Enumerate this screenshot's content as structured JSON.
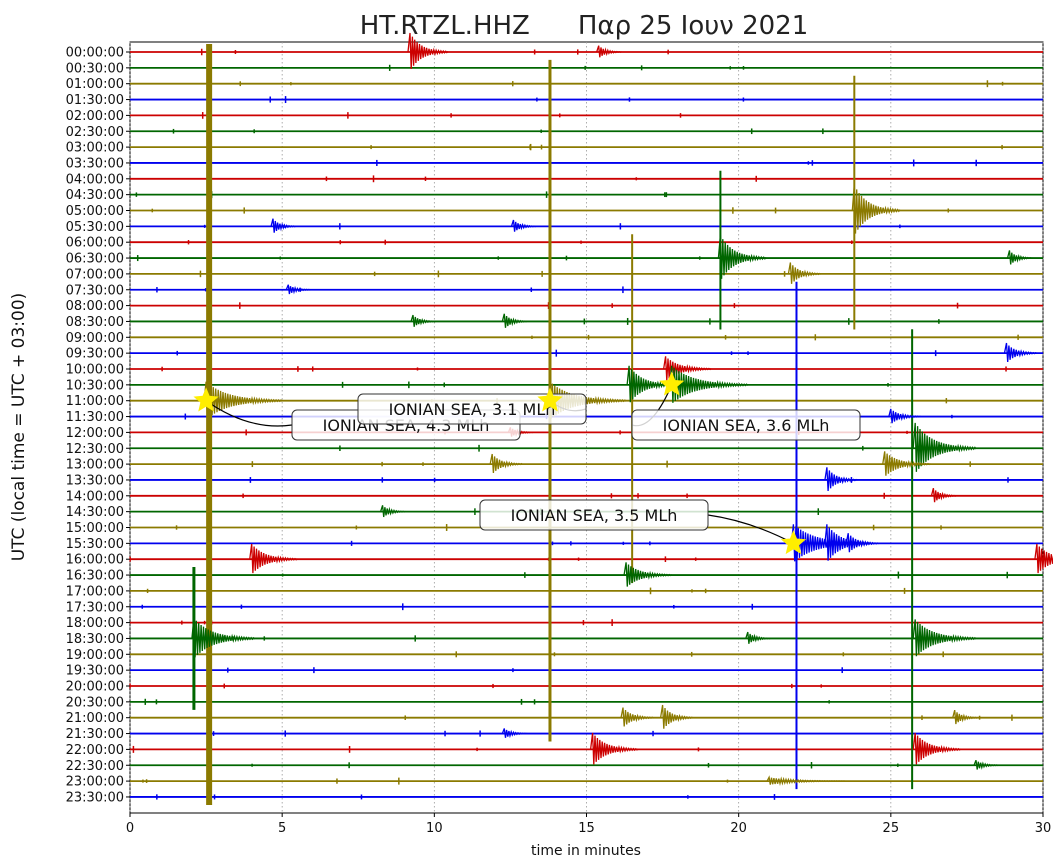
{
  "chart_data": {
    "type": "line",
    "chart_kind": "helicorder",
    "station": "HT.RTZL.HHZ",
    "date": "Παρ 25 Ιουν 2021",
    "xlabel": "time in minutes",
    "ylabel": "UTC (local time = UTC + 03:00)",
    "xlim": [
      0,
      30
    ],
    "x_ticks": [
      "0",
      "5",
      "10",
      "15",
      "20",
      "25",
      "30"
    ],
    "grid": "vertical dotted lines at each x tick",
    "row_colors": [
      "#cc0000",
      "#006600",
      "#8b7a00",
      "#0000ee"
    ],
    "rows": [
      "00:00:00",
      "00:30:00",
      "01:00:00",
      "01:30:00",
      "02:00:00",
      "02:30:00",
      "03:00:00",
      "03:30:00",
      "04:00:00",
      "04:30:00",
      "05:00:00",
      "05:30:00",
      "06:00:00",
      "06:30:00",
      "07:00:00",
      "07:30:00",
      "08:00:00",
      "08:30:00",
      "09:00:00",
      "09:30:00",
      "10:00:00",
      "10:30:00",
      "11:00:00",
      "11:30:00",
      "12:00:00",
      "12:30:00",
      "13:00:00",
      "13:30:00",
      "14:00:00",
      "14:30:00",
      "15:00:00",
      "15:30:00",
      "16:00:00",
      "16:30:00",
      "17:00:00",
      "17:30:00",
      "18:00:00",
      "18:30:00",
      "19:00:00",
      "19:30:00",
      "20:00:00",
      "20:30:00",
      "21:00:00",
      "21:30:00",
      "22:00:00",
      "22:30:00",
      "23:00:00",
      "23:30:00"
    ],
    "events": [
      {
        "row": 22,
        "x": 2.5,
        "label": "IONIAN SEA, 4.3 MLh"
      },
      {
        "row": 21,
        "x": 17.8,
        "label": "IONIAN SEA, 3.6 MLh"
      },
      {
        "row": 22,
        "x": 13.8,
        "label": "IONIAN SEA, 3.1 MLh"
      },
      {
        "row": 31,
        "x": 21.8,
        "label": "IONIAN SEA, 3.5 MLh"
      }
    ],
    "bursts": [
      {
        "row": 0,
        "x": 9.2,
        "amp": 1.5,
        "decay": 0.25
      },
      {
        "row": 0,
        "x": 15.4,
        "amp": 0.5,
        "decay": 0.15
      },
      {
        "row": 10,
        "x": 23.8,
        "amp": 2.0,
        "decay": 0.3
      },
      {
        "row": 11,
        "x": 4.7,
        "amp": 0.6,
        "decay": 0.15
      },
      {
        "row": 11,
        "x": 12.6,
        "amp": 0.5,
        "decay": 0.15
      },
      {
        "row": 13,
        "x": 19.4,
        "amp": 1.8,
        "decay": 0.3
      },
      {
        "row": 13,
        "x": 28.9,
        "amp": 0.6,
        "decay": 0.15
      },
      {
        "row": 14,
        "x": 21.7,
        "amp": 0.9,
        "decay": 0.2
      },
      {
        "row": 15,
        "x": 5.2,
        "amp": 0.4,
        "decay": 0.15
      },
      {
        "row": 17,
        "x": 9.3,
        "amp": 0.5,
        "decay": 0.15
      },
      {
        "row": 17,
        "x": 12.3,
        "amp": 0.6,
        "decay": 0.15
      },
      {
        "row": 19,
        "x": 28.8,
        "amp": 0.8,
        "decay": 0.2
      },
      {
        "row": 20,
        "x": 17.6,
        "amp": 1.0,
        "decay": 0.3
      },
      {
        "row": 21,
        "x": 16.4,
        "amp": 1.5,
        "decay": 0.3
      },
      {
        "row": 23,
        "x": 25.0,
        "amp": 0.6,
        "decay": 0.2
      },
      {
        "row": 24,
        "x": 12.5,
        "amp": 0.4,
        "decay": 0.15
      },
      {
        "row": 25,
        "x": 25.8,
        "amp": 2.0,
        "decay": 0.4
      },
      {
        "row": 26,
        "x": 11.9,
        "amp": 0.8,
        "decay": 0.2
      },
      {
        "row": 26,
        "x": 24.8,
        "amp": 1.0,
        "decay": 0.3
      },
      {
        "row": 27,
        "x": 22.9,
        "amp": 1.0,
        "decay": 0.2
      },
      {
        "row": 28,
        "x": 26.4,
        "amp": 0.6,
        "decay": 0.15
      },
      {
        "row": 29,
        "x": 8.3,
        "amp": 0.5,
        "decay": 0.15
      },
      {
        "row": 31,
        "x": 22.9,
        "amp": 1.5,
        "decay": 0.3
      },
      {
        "row": 31,
        "x": 23.6,
        "amp": 0.8,
        "decay": 0.2
      },
      {
        "row": 32,
        "x": 4.0,
        "amp": 1.2,
        "decay": 0.3
      },
      {
        "row": 32,
        "x": 29.8,
        "amp": 1.2,
        "decay": 0.3
      },
      {
        "row": 33,
        "x": 16.3,
        "amp": 1.0,
        "decay": 0.3
      },
      {
        "row": 37,
        "x": 2.1,
        "amp": 1.6,
        "decay": 0.4
      },
      {
        "row": 37,
        "x": 25.8,
        "amp": 1.5,
        "decay": 0.4
      },
      {
        "row": 37,
        "x": 20.3,
        "amp": 0.5,
        "decay": 0.15
      },
      {
        "row": 42,
        "x": 16.2,
        "amp": 0.8,
        "decay": 0.2
      },
      {
        "row": 42,
        "x": 17.5,
        "amp": 1.0,
        "decay": 0.2
      },
      {
        "row": 42,
        "x": 27.1,
        "amp": 0.6,
        "decay": 0.15
      },
      {
        "row": 43,
        "x": 12.3,
        "amp": 0.4,
        "decay": 0.15
      },
      {
        "row": 44,
        "x": 15.2,
        "amp": 1.3,
        "decay": 0.3
      },
      {
        "row": 44,
        "x": 25.8,
        "amp": 1.3,
        "decay": 0.3
      },
      {
        "row": 45,
        "x": 27.8,
        "amp": 0.4,
        "decay": 0.15
      },
      {
        "row": 46,
        "x": 21.0,
        "amp": 0.3,
        "decay": 0.5
      }
    ],
    "spikes": [
      {
        "x": 2.6,
        "from": 0,
        "to": 47,
        "width": 6,
        "row_color": 2
      },
      {
        "x": 13.8,
        "from": 1,
        "to": 43,
        "width": 3,
        "row_color": 2
      },
      {
        "x": 16.5,
        "from": 12,
        "to": 33,
        "width": 2,
        "row_color": 2
      },
      {
        "x": 23.8,
        "from": 2,
        "to": 17,
        "width": 2,
        "row_color": 2
      },
      {
        "x": 21.9,
        "from": 15,
        "to": 46,
        "width": 2,
        "row_color": 3
      },
      {
        "x": 25.7,
        "from": 18,
        "to": 46,
        "width": 2,
        "row_color": 1
      },
      {
        "x": 2.1,
        "from": 33,
        "to": 41,
        "width": 3,
        "row_color": 1
      },
      {
        "x": 19.4,
        "from": 8,
        "to": 17,
        "width": 2,
        "row_color": 1
      }
    ]
  }
}
